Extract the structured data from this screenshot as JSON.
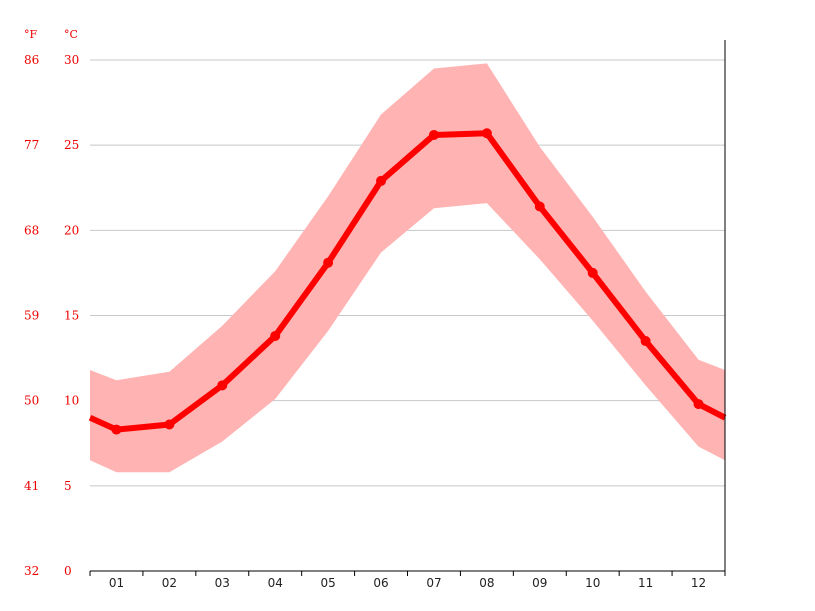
{
  "chart_data": {
    "type": "line",
    "units": {
      "fahrenheit": "°F",
      "celsius": "°C"
    },
    "categories": [
      "01",
      "02",
      "03",
      "04",
      "05",
      "06",
      "07",
      "08",
      "09",
      "10",
      "11",
      "12"
    ],
    "series": [
      {
        "role": "mean",
        "values": [
          8.3,
          8.6,
          10.9,
          13.8,
          18.1,
          22.9,
          25.6,
          25.7,
          21.4,
          17.5,
          13.5,
          9.8
        ]
      },
      {
        "role": "min",
        "values": [
          5.8,
          5.8,
          7.6,
          10.1,
          14.1,
          18.7,
          21.3,
          21.6,
          18.3,
          14.7,
          10.9,
          7.3
        ]
      },
      {
        "role": "max",
        "values": [
          11.2,
          11.7,
          14.4,
          17.6,
          22.0,
          26.8,
          29.5,
          29.8,
          24.9,
          20.8,
          16.4,
          12.4
        ]
      }
    ],
    "edge_left": {
      "mean": 9.0,
      "min": 6.5,
      "max": 11.8
    },
    "edge_right": {
      "mean": 9.0,
      "min": 6.5,
      "max": 11.8
    },
    "y_celsius_ticks": [
      0,
      5,
      10,
      15,
      20,
      25,
      30
    ],
    "y_fahrenheit_ticks": [
      32,
      41,
      50,
      59,
      68,
      77,
      86
    ],
    "ylim": [
      0,
      30
    ],
    "grid": true,
    "colors": {
      "line": "#ff0000",
      "band": "#ffb3b3",
      "grid": "#c8c8c8",
      "tick_text": "#ee0000",
      "axis": "#000000"
    }
  }
}
